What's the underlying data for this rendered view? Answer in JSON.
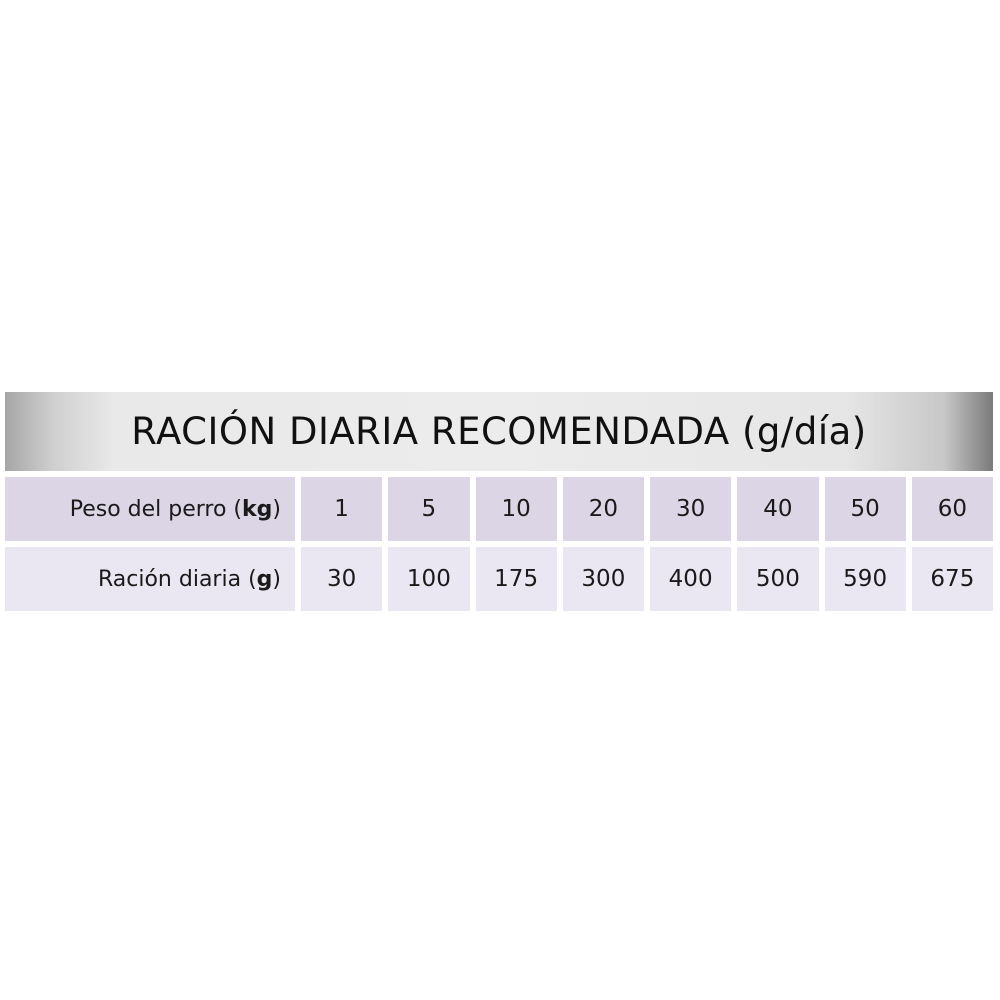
{
  "title": "RACIÓN DIARIA RECOMENDADA (g/día)",
  "rows": {
    "weight": {
      "label": "Peso del perro (",
      "unit": "kg",
      "close": ")",
      "values": [
        "1",
        "5",
        "10",
        "20",
        "30",
        "40",
        "50",
        "60"
      ]
    },
    "ration": {
      "label": "Ración diaria (",
      "unit": "g",
      "close": ")",
      "values": [
        "30",
        "100",
        "175",
        "300",
        "400",
        "500",
        "590",
        "675"
      ]
    }
  },
  "colors": {
    "row_weight": "#dcd5e6",
    "row_ration": "#ebe7f2",
    "title_bar": "#ececec"
  }
}
